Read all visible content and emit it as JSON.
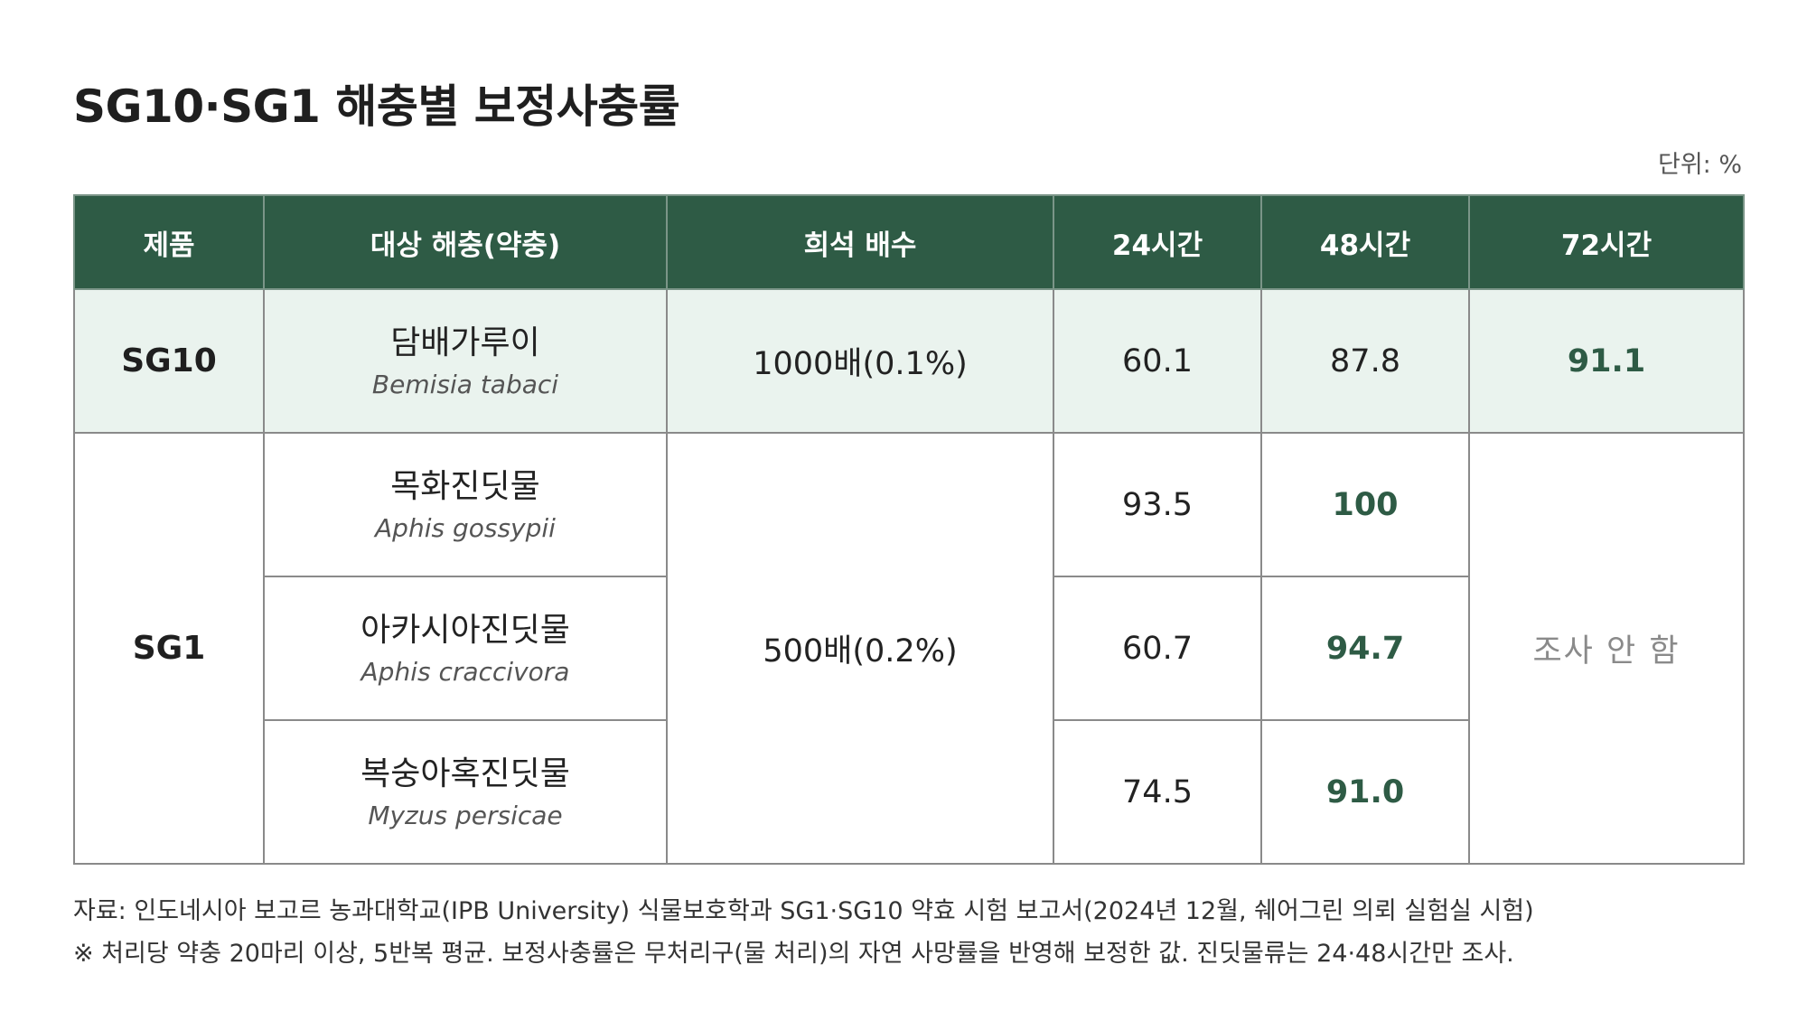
{
  "title": "SG10·SG1 해충별 보정사충률",
  "unit": "단위: %",
  "columns": [
    "제품",
    "대상 해충(약충)",
    "희석 배수",
    "24시간",
    "48시간",
    "72시간"
  ],
  "rows": [
    {
      "product": "SG10",
      "pest_ko": "담배가루이",
      "pest_sci": "Bemisia tabaci",
      "dilution": "1000배(0.1%)",
      "h24": "60.1",
      "h48": "87.8",
      "h72": "91.1"
    },
    {
      "product": "SG1",
      "pest_ko": "목화진딧물",
      "pest_sci": "Aphis gossypii",
      "dilution": "500배(0.2%)",
      "h24": "93.5",
      "h48": "100",
      "h72": "조사 안 함"
    },
    {
      "pest_ko": "아카시아진딧물",
      "pest_sci": "Aphis craccivora",
      "h24": "60.7",
      "h48": "94.7"
    },
    {
      "pest_ko": "복숭아혹진딧물",
      "pest_sci": "Myzus persicae",
      "h24": "74.5",
      "h48": "91.0"
    }
  ],
  "notes": [
    "자료: 인도네시아 보고르 농과대학교(IPB University) 식물보호학과 SG1·SG10 약효 시험 보고서(2024년 12월, 쉐어그린 의뢰 실험실 시험)",
    "※ 처리당 약충 20마리 이상, 5반복 평균. 보정사충률은 무처리구(물 처리)의 자연 사망률을 반영해 보정한 값. 진딧물류는 24·48시간만 조사."
  ],
  "colors": {
    "header_bg": "#2e5b45",
    "highlight_row_bg": "#eaf3ee",
    "highlight_text": "#2e5b45"
  }
}
